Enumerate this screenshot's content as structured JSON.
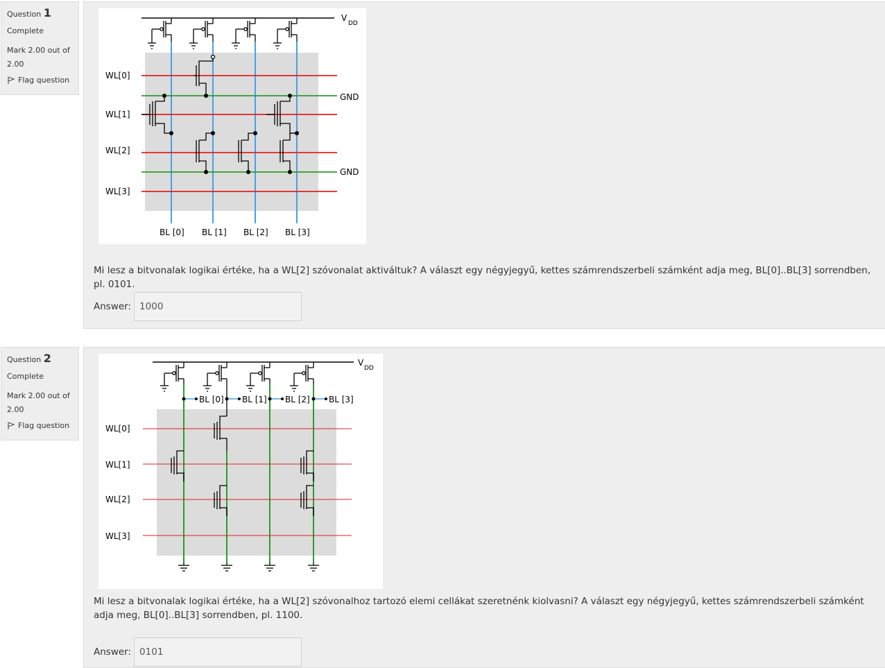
{
  "questions": [
    {
      "label": "Question",
      "number": "1",
      "state": "Complete",
      "grade": "Mark 2.00 out of 2.00",
      "flag_label": "Flag question",
      "text": "Mi lesz a bitvonalak logikai értéke, ha a WL[2] szóvonalat aktiváltuk? A választ egy négyjegyű, kettes számrendszerbeli számként adja meg, BL[0]..BL[3] sorrendben, pl. 0101.",
      "answer_label": "Answer:",
      "answer_value": "1000",
      "figure": {
        "vdd": "V",
        "vdd_sub": "DD",
        "gnd": "GND",
        "word_lines": [
          "WL[0]",
          "WL[1]",
          "WL[2]",
          "WL[3]"
        ],
        "bit_lines": [
          "BL [0]",
          "BL [1]",
          "BL [2]",
          "BL [3]"
        ]
      }
    },
    {
      "label": "Question",
      "number": "2",
      "state": "Complete",
      "grade": "Mark 2.00 out of 2.00",
      "flag_label": "Flag question",
      "text": "Mi lesz a bitvonalak logikai értéke, ha a WL[2] szóvonalhoz tartozó elemi cellákat szeretnénk kiolvasni? A választ egy négyjegyű, kettes számrendszerbeli számként adja meg, BL[0]..BL[3] sorrendben, pl. 1100.",
      "answer_label": "Answer:",
      "answer_value": "0101",
      "figure": {
        "vdd": "V",
        "vdd_sub": "DD",
        "word_lines": [
          "WL[0]",
          "WL[1]",
          "WL[2]",
          "WL[3]"
        ],
        "bit_lines": [
          "BL [0]",
          "BL [1]",
          "BL [2]",
          "BL [3]"
        ]
      }
    }
  ],
  "colors": {
    "word_line": "#e02020",
    "gnd_line": "#2e9a2e",
    "bit_line": "#4aa0e0",
    "bit_line_q2": "#2e9a2e"
  }
}
